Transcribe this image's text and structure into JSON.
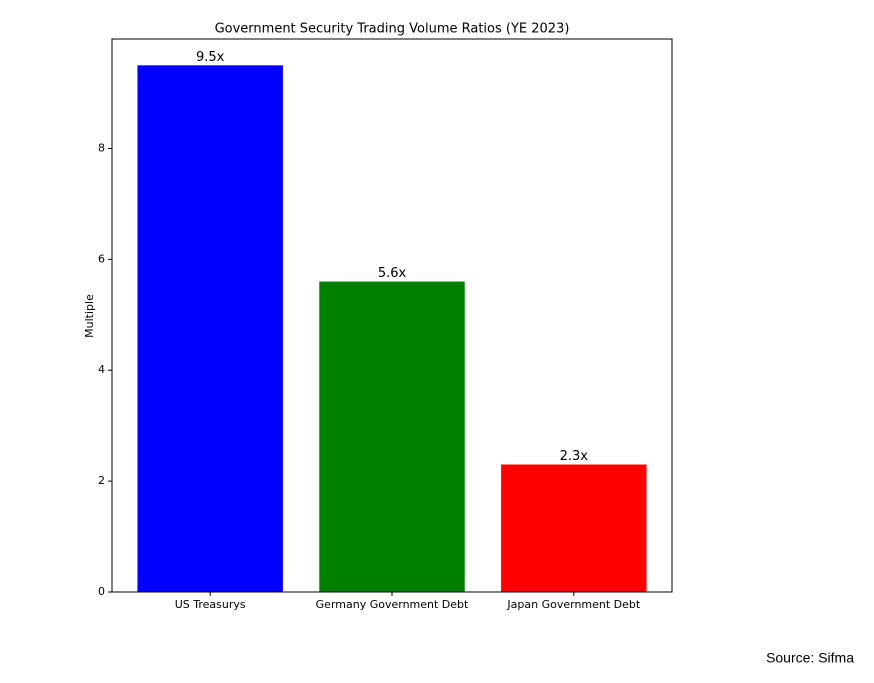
{
  "chart_data": {
    "type": "bar",
    "title": "Government Security Trading Volume Ratios (YE 2023)",
    "ylabel": "Multiple",
    "categories": [
      "US Treasurys",
      "Germany Government Debt",
      "Japan Government Debt"
    ],
    "values": [
      9.5,
      5.6,
      2.3
    ],
    "value_labels": [
      "9.5x",
      "5.6x",
      "2.3x"
    ],
    "colors": [
      "#0000ff",
      "#008000",
      "#ff0000"
    ],
    "ylim": [
      0,
      9.975
    ],
    "yticks": [
      0,
      2,
      4,
      6,
      8
    ],
    "grid": false
  },
  "source": "Source: Sifma"
}
